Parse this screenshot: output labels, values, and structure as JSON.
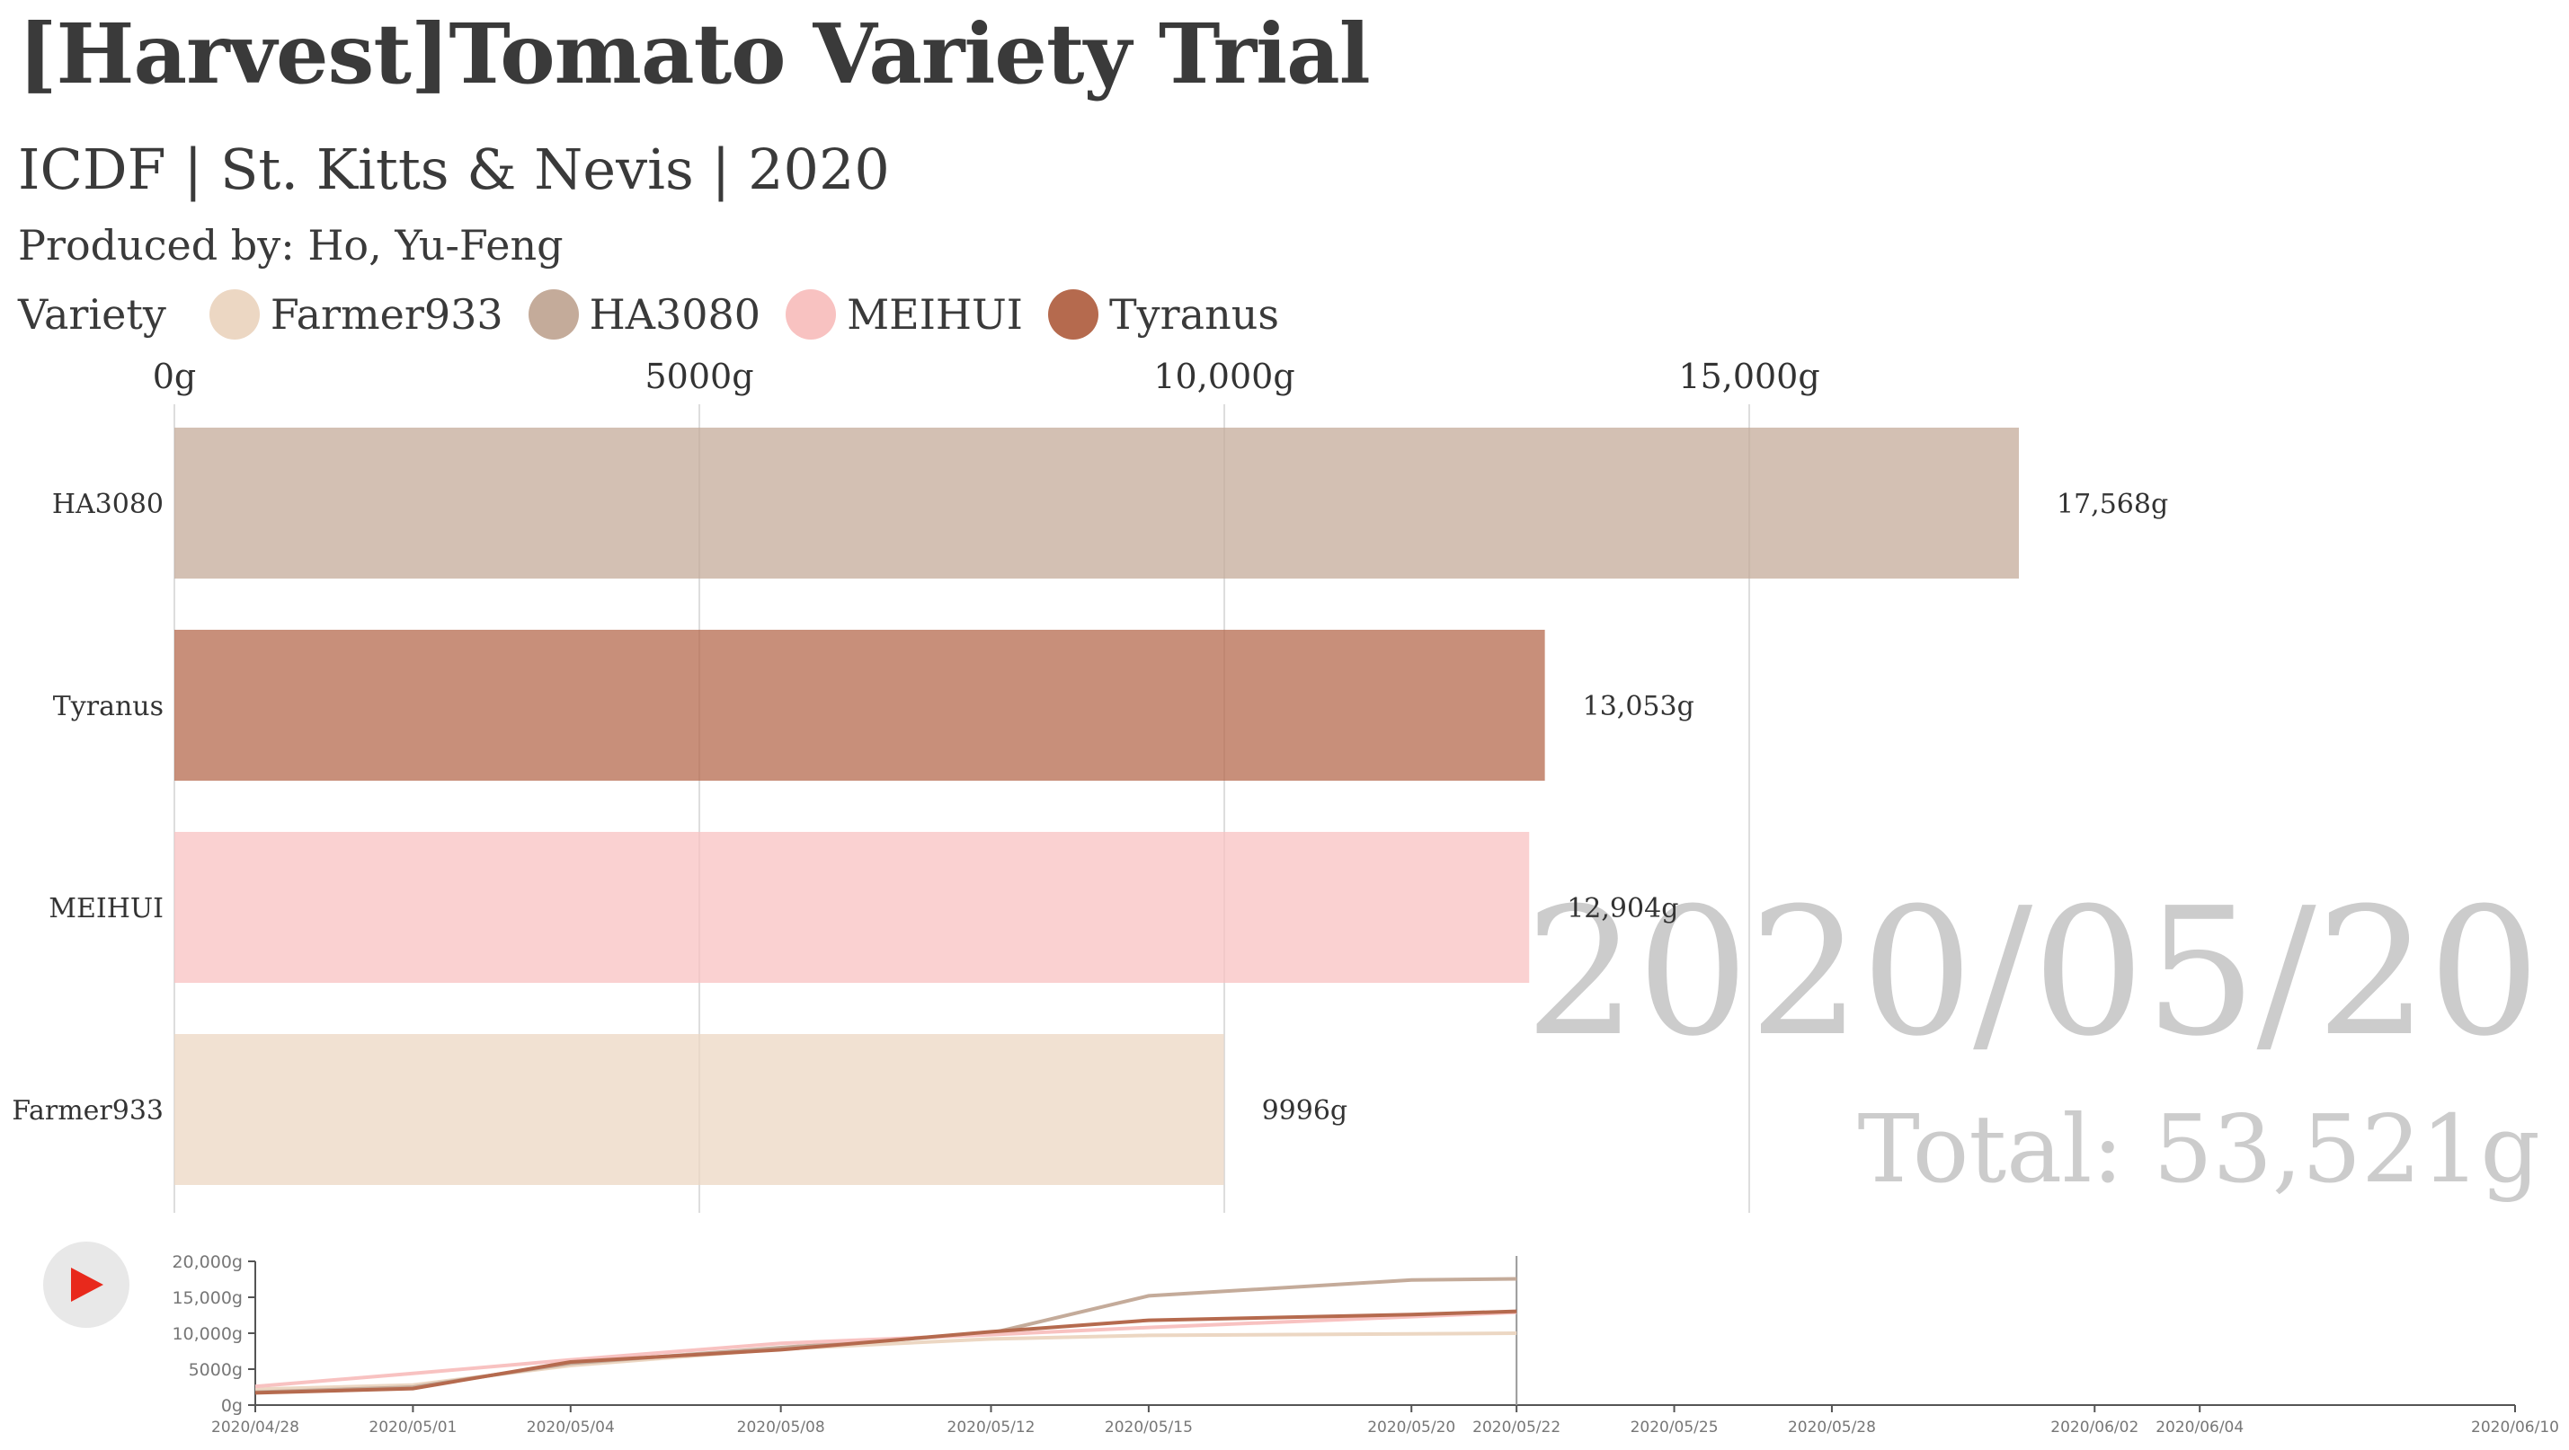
{
  "header": {
    "title": "[Harvest]Tomato Variety Trial",
    "subtitle": "ICDF | St. Kitts & Nevis | 2020",
    "credit": "Produced by: Ho, Yu-Feng"
  },
  "legend": {
    "title": "Variety",
    "items": [
      {
        "label": "Farmer933",
        "color": "#ecd7c3"
      },
      {
        "label": "HA3080",
        "color": "#c4ab9a"
      },
      {
        "label": "MEIHUI",
        "color": "#f8c2c1"
      },
      {
        "label": "Tyranus",
        "color": "#b56a4e"
      }
    ]
  },
  "colors": {
    "Farmer933": "#ecd7c3",
    "HA3080": "#c4ab9a",
    "MEIHUI": "#f8c2c1",
    "Tyranus": "#b56a4e",
    "watermark": "#cccccc",
    "play": "#e8291c"
  },
  "play_icon": "play-icon",
  "chart_data": [
    {
      "type": "bar",
      "orientation": "horizontal",
      "categories": [
        "HA3080",
        "Tyranus",
        "MEIHUI",
        "Farmer933"
      ],
      "values": [
        17568,
        13053,
        12904,
        9996
      ],
      "value_labels": [
        "17,568g",
        "13,053g",
        "12,904g",
        "9996g"
      ],
      "xlim": [
        0,
        17568
      ],
      "xticks": [
        0,
        5000,
        10000,
        15000
      ],
      "xtick_labels": [
        "0g",
        "5000g",
        "10,000g",
        "15,000g"
      ],
      "grid": true,
      "date_label": "2020/05/20",
      "total_label": "Total: 53,521g"
    },
    {
      "type": "line",
      "x": [
        "2020/04/28",
        "2020/05/01",
        "2020/05/04",
        "2020/05/08",
        "2020/05/12",
        "2020/05/15",
        "2020/05/20",
        "2020/05/22"
      ],
      "series": [
        {
          "name": "Farmer933",
          "values": [
            2200,
            2800,
            5500,
            7800,
            9200,
            9700,
            9900,
            10000
          ]
        },
        {
          "name": "HA3080",
          "values": [
            1800,
            2500,
            5800,
            8000,
            10000,
            15200,
            17400,
            17568
          ]
        },
        {
          "name": "MEIHUI",
          "values": [
            2600,
            4400,
            6300,
            8600,
            9800,
            10800,
            12300,
            12904
          ]
        },
        {
          "name": "Tyranus",
          "values": [
            1700,
            2300,
            6000,
            7700,
            10200,
            11800,
            12600,
            13053
          ]
        }
      ],
      "ylim": [
        0,
        20000
      ],
      "yticks": [
        0,
        5000,
        10000,
        15000,
        20000
      ],
      "ytick_labels": [
        "0g",
        "5000g",
        "10,000g",
        "15,000g",
        "20,000g"
      ],
      "x_axis_range": [
        "2020/04/28",
        "2020/06/10"
      ],
      "xticks": [
        "2020/04/28",
        "2020/05/01",
        "2020/05/04",
        "2020/05/08",
        "2020/05/12",
        "2020/05/15",
        "2020/05/20",
        "2020/05/22",
        "2020/05/25",
        "2020/05/28",
        "2020/06/02",
        "2020/06/04",
        "2020/06/10"
      ],
      "current_date": "2020/05/22"
    }
  ]
}
